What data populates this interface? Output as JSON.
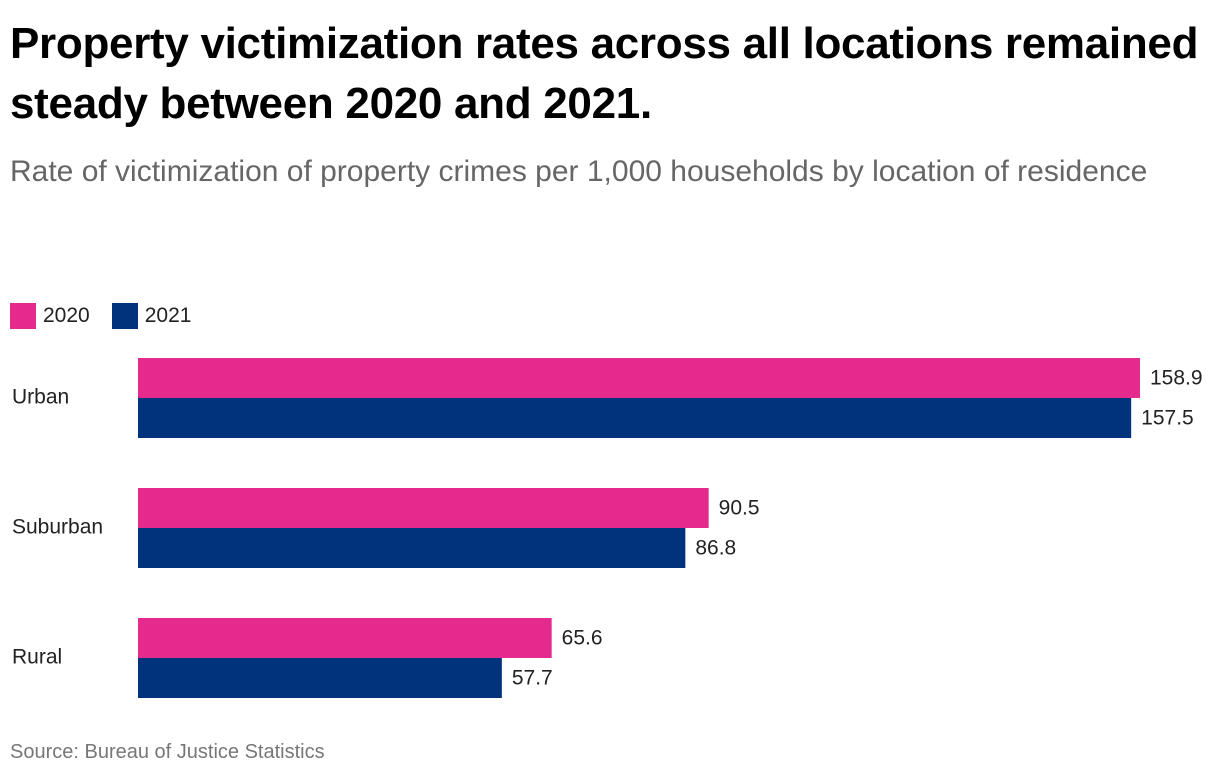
{
  "title": "Property victimization rates across all locations remained steady between 2020 and 2021.",
  "subtitle": "Rate of victimization of property crimes per 1,000 households by location of residence",
  "source": "Source: Bureau of Justice Statistics",
  "legend": [
    {
      "label": "2020",
      "color": "#e52a8d"
    },
    {
      "label": "2021",
      "color": "#00337c"
    }
  ],
  "chart_data": {
    "type": "bar",
    "orientation": "horizontal",
    "title": "Property victimization rates across all locations remained steady between 2020 and 2021.",
    "subtitle": "Rate of victimization of property crimes per 1,000 households by location of residence",
    "categories": [
      "Urban",
      "Suburban",
      "Rural"
    ],
    "series": [
      {
        "name": "2020",
        "color": "#e52a8d",
        "values": [
          158.9,
          90.5,
          65.6
        ],
        "labels": [
          "158.9",
          "90.5",
          "65.6"
        ]
      },
      {
        "name": "2021",
        "color": "#00337c",
        "values": [
          157.5,
          86.8,
          57.7
        ],
        "labels": [
          "157.5",
          "86.8",
          "57.7"
        ]
      }
    ],
    "xlim": [
      0,
      158.9
    ],
    "xlabel": "",
    "ylabel": "",
    "grid": false,
    "legend_position": "top-left",
    "data_labels": true
  }
}
